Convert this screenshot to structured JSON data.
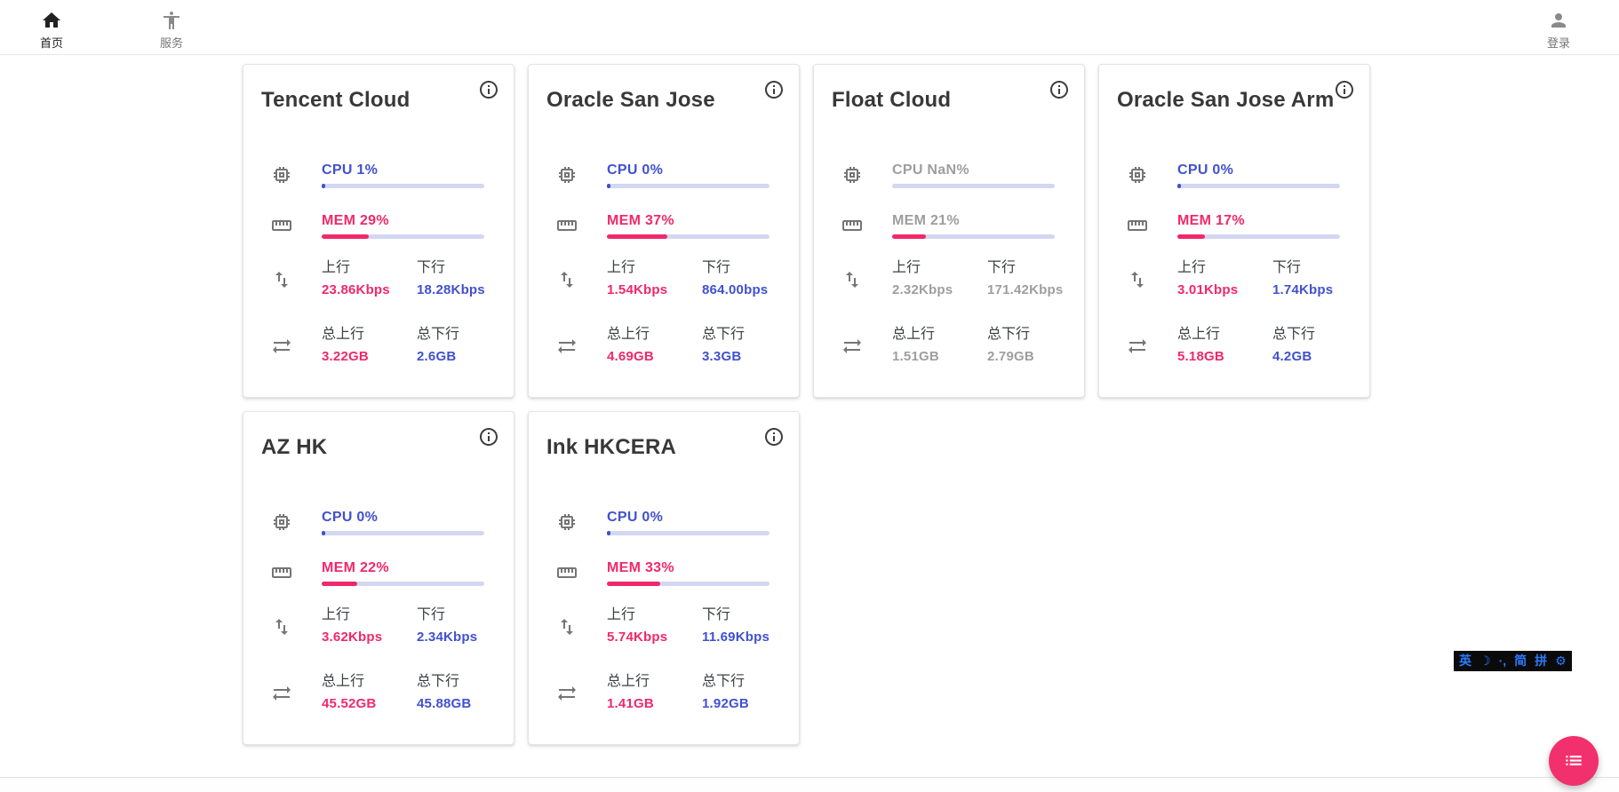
{
  "nav": {
    "home": {
      "label": "首页"
    },
    "services": {
      "label": "服务"
    },
    "login": {
      "label": "登录"
    }
  },
  "labels": {
    "up": "上行",
    "down": "下行",
    "total_up": "总上行",
    "total_down": "总下行"
  },
  "servers": [
    {
      "name": "Tencent Cloud",
      "cpu": "CPU 1%",
      "cpu_pct": 1,
      "mem": "MEM 29%",
      "mem_pct": 29,
      "up": "23.86Kbps",
      "down": "18.28Kbps",
      "total_up": "3.22GB",
      "total_down": "2.6GB",
      "offline": false
    },
    {
      "name": "Oracle San Jose",
      "cpu": "CPU 0%",
      "cpu_pct": 0,
      "mem": "MEM 37%",
      "mem_pct": 37,
      "up": "1.54Kbps",
      "down": "864.00bps",
      "total_up": "4.69GB",
      "total_down": "3.3GB",
      "offline": false
    },
    {
      "name": "Float Cloud",
      "cpu": "CPU NaN%",
      "cpu_pct": null,
      "mem": "MEM 21%",
      "mem_pct": 21,
      "up": "2.32Kbps",
      "down": "171.42Kbps",
      "total_up": "1.51GB",
      "total_down": "2.79GB",
      "offline": true
    },
    {
      "name": "Oracle San Jose Arm",
      "cpu": "CPU 0%",
      "cpu_pct": 0,
      "mem": "MEM 17%",
      "mem_pct": 17,
      "up": "3.01Kbps",
      "down": "1.74Kbps",
      "total_up": "5.18GB",
      "total_down": "4.2GB",
      "offline": false
    },
    {
      "name": "AZ HK",
      "cpu": "CPU 0%",
      "cpu_pct": 0,
      "mem": "MEM 22%",
      "mem_pct": 22,
      "up": "3.62Kbps",
      "down": "2.34Kbps",
      "total_up": "45.52GB",
      "total_down": "45.88GB",
      "offline": false
    },
    {
      "name": "Ink HKCERA",
      "cpu": "CPU 0%",
      "cpu_pct": 0,
      "mem": "MEM 33%",
      "mem_pct": 33,
      "up": "5.74Kbps",
      "down": "11.69Kbps",
      "total_up": "1.41GB",
      "total_down": "1.92GB",
      "offline": false
    }
  ],
  "ime": {
    "items": [
      "英",
      "☽",
      "·,",
      "简",
      "拼",
      "⚙"
    ]
  },
  "colors": {
    "blue": "#4151ce",
    "pink": "#f0296a",
    "track": "#d3d7f2",
    "gray": "#9e9e9e",
    "fab": "#f2306e"
  }
}
